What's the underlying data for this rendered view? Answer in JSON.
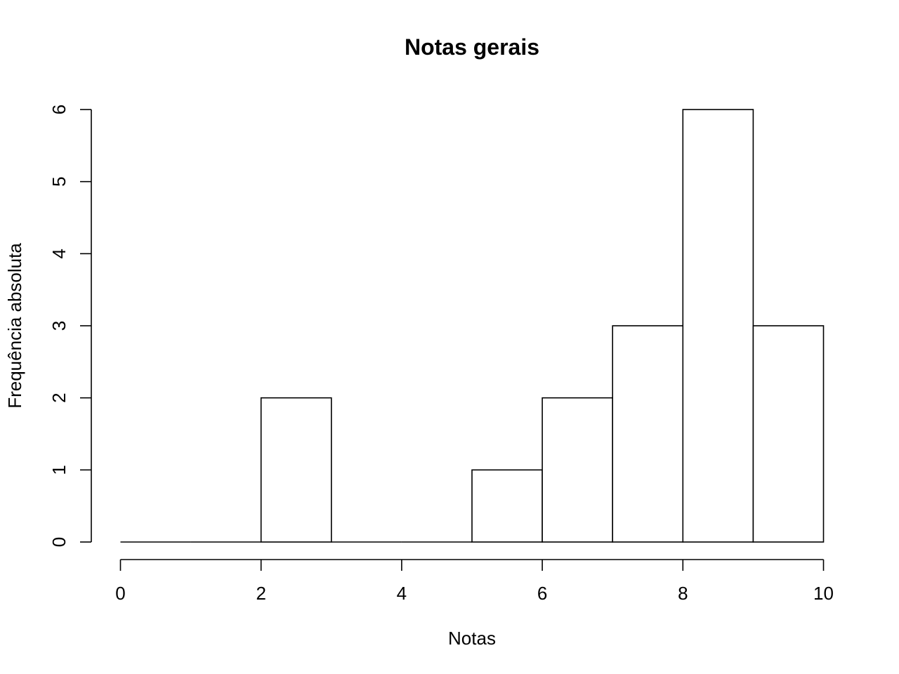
{
  "chart_data": {
    "type": "bar",
    "subtype": "histogram",
    "title": "Notas gerais",
    "xlabel": "Notas",
    "ylabel": "Frequência absoluta",
    "bins": [
      {
        "from": 0,
        "to": 1,
        "count": 0
      },
      {
        "from": 1,
        "to": 2,
        "count": 0
      },
      {
        "from": 2,
        "to": 3,
        "count": 2
      },
      {
        "from": 3,
        "to": 4,
        "count": 0
      },
      {
        "from": 4,
        "to": 5,
        "count": 0
      },
      {
        "from": 5,
        "to": 6,
        "count": 1
      },
      {
        "from": 6,
        "to": 7,
        "count": 2
      },
      {
        "from": 7,
        "to": 8,
        "count": 3
      },
      {
        "from": 8,
        "to": 9,
        "count": 6
      },
      {
        "from": 9,
        "to": 10,
        "count": 3
      }
    ],
    "xlim": [
      0,
      10
    ],
    "ylim": [
      0,
      6
    ],
    "x_ticks": [
      0,
      2,
      4,
      6,
      8,
      10
    ],
    "y_ticks": [
      0,
      1,
      2,
      3,
      4,
      5,
      6
    ],
    "grid": false,
    "legend": "none",
    "colors": {
      "bar_fill": "#ffffff",
      "bar_stroke": "#000000",
      "axis": "#000000"
    }
  }
}
